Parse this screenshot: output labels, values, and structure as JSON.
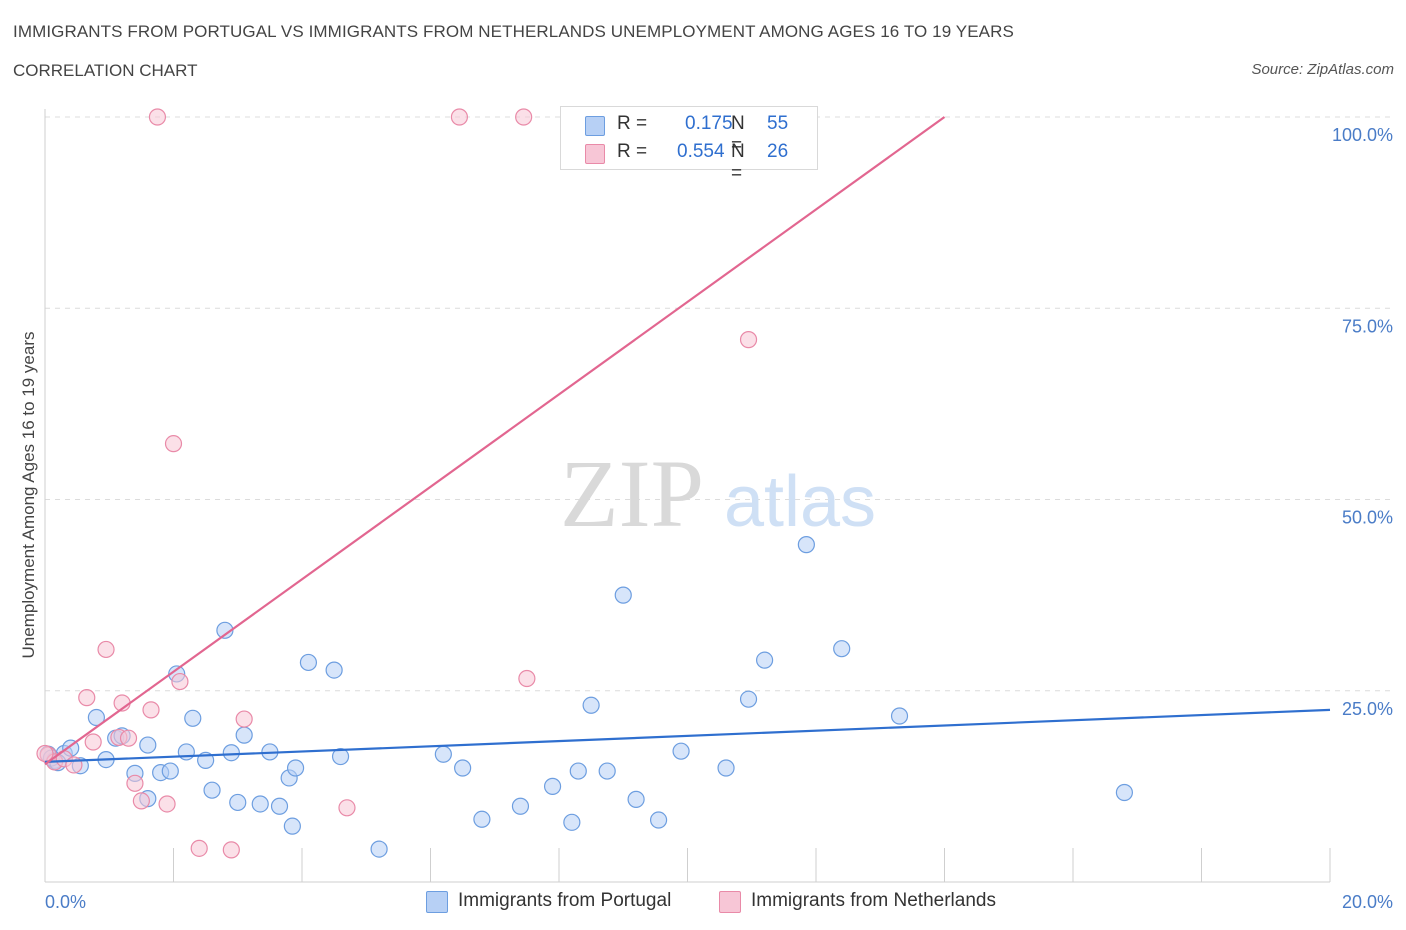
{
  "header": {
    "title": "IMMIGRANTS FROM PORTUGAL VS IMMIGRANTS FROM NETHERLANDS UNEMPLOYMENT AMONG AGES 16 TO 19 YEARS",
    "subtitle": "CORRELATION CHART",
    "source": "Source: ZipAtlas.com"
  },
  "watermark": {
    "zip": "ZIP",
    "atlas": "atlas"
  },
  "stats_legend": {
    "rows": [
      {
        "r_label": "R =",
        "r_value": "0.175",
        "n_label": "N =",
        "n_value": "55"
      },
      {
        "r_label": "R =",
        "r_value": "0.554",
        "n_label": "N =",
        "n_value": "26"
      }
    ]
  },
  "colors": {
    "portugal_fill": "#b7d0f5",
    "portugal_stroke": "#6d9ee0",
    "portugal_line": "#2f6fcf",
    "netherlands_fill": "#f7c6d6",
    "netherlands_stroke": "#e98aa8",
    "netherlands_line": "#e26690",
    "tick_text": "#4a7cc7"
  },
  "chart_data": {
    "type": "scatter",
    "title": "IMMIGRANTS FROM PORTUGAL VS IMMIGRANTS FROM NETHERLANDS UNEMPLOYMENT AMONG AGES 16 TO 19 YEARS",
    "xlabel": "",
    "ylabel": "Unemployment Among Ages 16 to 19 years",
    "xlim": [
      0,
      20
    ],
    "ylim": [
      0,
      100
    ],
    "x_tick_labels": [
      "0.0%",
      "20.0%"
    ],
    "y_tick_labels": [
      "25.0%",
      "50.0%",
      "75.0%",
      "100.0%"
    ],
    "y_ticks": [
      25,
      50,
      75,
      100
    ],
    "grid": true,
    "legend_position": "bottom-center",
    "series": [
      {
        "name": "Immigrants from Portugal",
        "trend": {
          "x": [
            0,
            20
          ],
          "y": [
            15.7,
            22.5
          ]
        },
        "points": [
          {
            "x": 0.05,
            "y": 16.7
          },
          {
            "x": 0.15,
            "y": 15.9
          },
          {
            "x": 0.3,
            "y": 16.8
          },
          {
            "x": 0.4,
            "y": 17.5
          },
          {
            "x": 0.55,
            "y": 15.2
          },
          {
            "x": 0.8,
            "y": 21.5
          },
          {
            "x": 0.95,
            "y": 16.0
          },
          {
            "x": 1.1,
            "y": 18.8
          },
          {
            "x": 1.2,
            "y": 19.1
          },
          {
            "x": 1.4,
            "y": 14.2
          },
          {
            "x": 1.6,
            "y": 17.9
          },
          {
            "x": 1.8,
            "y": 14.3
          },
          {
            "x": 1.95,
            "y": 14.5
          },
          {
            "x": 2.05,
            "y": 27.2
          },
          {
            "x": 2.2,
            "y": 17.0
          },
          {
            "x": 2.3,
            "y": 21.4
          },
          {
            "x": 2.5,
            "y": 15.9
          },
          {
            "x": 2.6,
            "y": 12.0
          },
          {
            "x": 2.8,
            "y": 32.9
          },
          {
            "x": 2.9,
            "y": 16.9
          },
          {
            "x": 3.0,
            "y": 10.4
          },
          {
            "x": 3.1,
            "y": 19.2
          },
          {
            "x": 3.35,
            "y": 10.2
          },
          {
            "x": 3.5,
            "y": 17.0
          },
          {
            "x": 3.65,
            "y": 9.9
          },
          {
            "x": 3.8,
            "y": 13.6
          },
          {
            "x": 3.85,
            "y": 7.3
          },
          {
            "x": 3.9,
            "y": 14.9
          },
          {
            "x": 4.1,
            "y": 28.7
          },
          {
            "x": 4.5,
            "y": 27.7
          },
          {
            "x": 4.6,
            "y": 16.4
          },
          {
            "x": 5.2,
            "y": 4.3
          },
          {
            "x": 6.2,
            "y": 16.7
          },
          {
            "x": 6.5,
            "y": 14.9
          },
          {
            "x": 6.8,
            "y": 8.2
          },
          {
            "x": 7.4,
            "y": 9.9
          },
          {
            "x": 7.9,
            "y": 12.5
          },
          {
            "x": 8.2,
            "y": 7.8
          },
          {
            "x": 8.3,
            "y": 14.5
          },
          {
            "x": 8.5,
            "y": 23.1
          },
          {
            "x": 8.75,
            "y": 14.5
          },
          {
            "x": 9.0,
            "y": 37.5
          },
          {
            "x": 9.2,
            "y": 10.8
          },
          {
            "x": 9.55,
            "y": 8.1
          },
          {
            "x": 9.9,
            "y": 17.1
          },
          {
            "x": 10.6,
            "y": 14.9
          },
          {
            "x": 10.95,
            "y": 23.9
          },
          {
            "x": 11.2,
            "y": 29.0
          },
          {
            "x": 11.85,
            "y": 44.1
          },
          {
            "x": 12.4,
            "y": 30.5
          },
          {
            "x": 13.3,
            "y": 21.7
          },
          {
            "x": 16.8,
            "y": 11.7
          },
          {
            "x": 1.6,
            "y": 10.9
          },
          {
            "x": 0.1,
            "y": 16.2
          },
          {
            "x": 0.2,
            "y": 15.6
          }
        ]
      },
      {
        "name": "Immigrants from Netherlands",
        "trend": {
          "x": [
            0,
            14
          ],
          "y": [
            15.4,
            100
          ]
        },
        "points": [
          {
            "x": 0.05,
            "y": 16.6
          },
          {
            "x": 0.15,
            "y": 15.7
          },
          {
            "x": 0.3,
            "y": 16.1
          },
          {
            "x": 0.45,
            "y": 15.3
          },
          {
            "x": 0.65,
            "y": 24.1
          },
          {
            "x": 0.75,
            "y": 18.3
          },
          {
            "x": 0.95,
            "y": 30.4
          },
          {
            "x": 1.15,
            "y": 18.9
          },
          {
            "x": 1.2,
            "y": 23.4
          },
          {
            "x": 1.3,
            "y": 18.8
          },
          {
            "x": 1.4,
            "y": 12.9
          },
          {
            "x": 1.5,
            "y": 10.6
          },
          {
            "x": 1.65,
            "y": 22.5
          },
          {
            "x": 1.75,
            "y": 100
          },
          {
            "x": 1.9,
            "y": 10.2
          },
          {
            "x": 2.0,
            "y": 57.3
          },
          {
            "x": 2.1,
            "y": 26.2
          },
          {
            "x": 2.4,
            "y": 4.4
          },
          {
            "x": 2.9,
            "y": 4.2
          },
          {
            "x": 3.1,
            "y": 21.3
          },
          {
            "x": 4.7,
            "y": 9.7
          },
          {
            "x": 6.45,
            "y": 100
          },
          {
            "x": 7.45,
            "y": 100
          },
          {
            "x": 7.5,
            "y": 26.6
          },
          {
            "x": 10.95,
            "y": 70.9
          },
          {
            "x": 0.0,
            "y": 16.8
          }
        ]
      }
    ]
  },
  "bottom_legend": {
    "items": [
      {
        "label": "Immigrants from Portugal"
      },
      {
        "label": "Immigrants from Netherlands"
      }
    ]
  }
}
